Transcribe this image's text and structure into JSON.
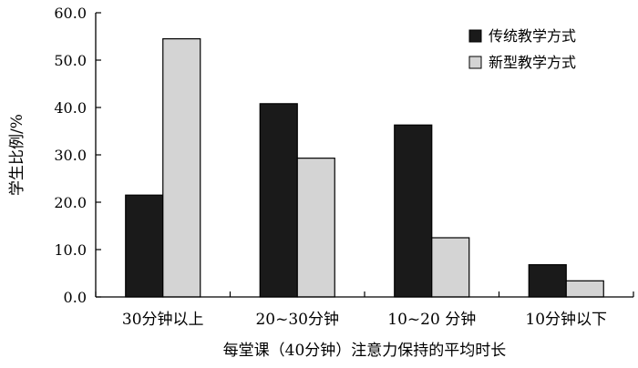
{
  "chart_data": {
    "type": "bar",
    "categories": [
      "30分钟以上",
      "20~30分钟",
      "10~20 分钟",
      "10分钟以下"
    ],
    "series": [
      {
        "name": "传统教学方式",
        "values": [
          21.5,
          40.8,
          36.3,
          6.8
        ],
        "color": "#1a1a1a"
      },
      {
        "name": "新型教学方式",
        "values": [
          54.5,
          29.3,
          12.5,
          3.4
        ],
        "color": "#d4d4d4"
      }
    ],
    "title": "",
    "xlabel": "每堂课（40分钟）注意力保持的平均时长",
    "ylabel": "学生比例/%",
    "ylim": [
      0,
      60
    ],
    "yticks": [
      "0.0",
      "10.0",
      "20.0",
      "30.0",
      "40.0",
      "50.0",
      "60.0"
    ],
    "legend_position": "top-right",
    "grid": false
  }
}
